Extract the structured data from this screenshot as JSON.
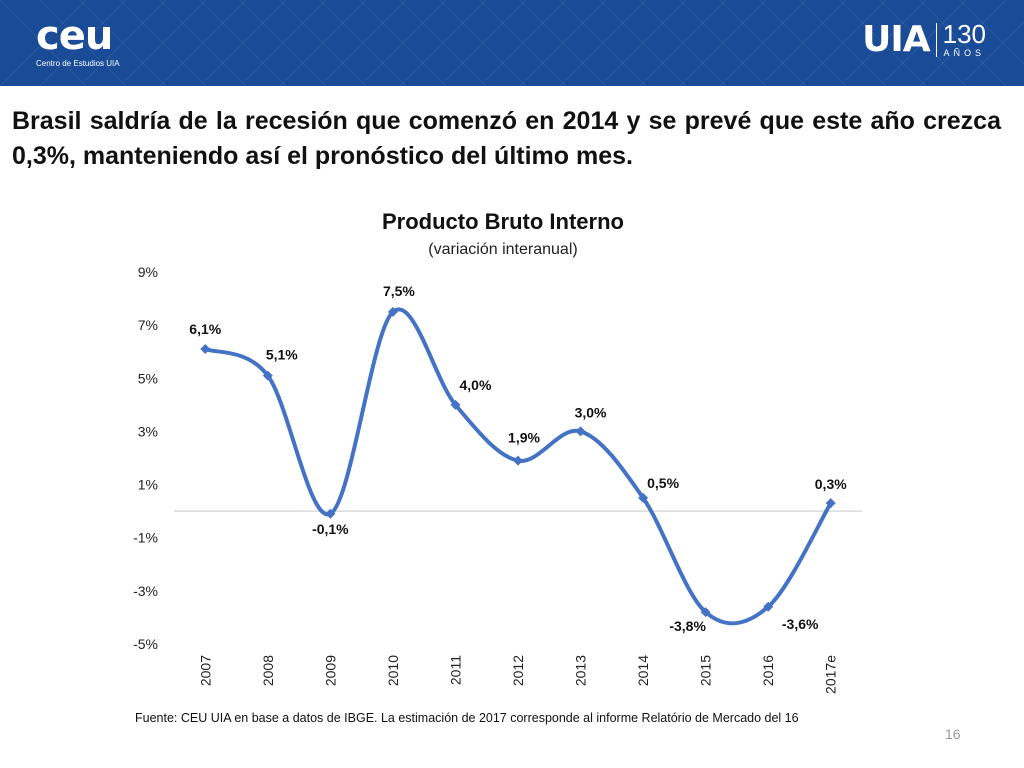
{
  "header": {
    "brand": "ceu",
    "brand_subtitle": "Centro de Estudios UIA",
    "partner_brand": "UIA",
    "anniversary_number": "130",
    "anniversary_label": "AÑOS",
    "colors": {
      "background": "#1a4b97",
      "text": "#ffffff"
    }
  },
  "headline": "Brasil saldría de la recesión que comenzó en 2014 y se prevé que este año crezca 0,3%, manteniendo así el pronóstico del último mes.",
  "chart_data": {
    "type": "line",
    "title": "Producto Bruto Interno",
    "subtitle": "(variación interanual)",
    "xlabel": "",
    "ylabel": "",
    "categories": [
      "2007",
      "2008",
      "2009",
      "2010",
      "2011",
      "2012",
      "2013",
      "2014",
      "2015",
      "2016",
      "2017e"
    ],
    "series": [
      {
        "name": "Variación interanual del PBI",
        "values": [
          6.1,
          5.1,
          -0.1,
          7.5,
          4.0,
          1.9,
          3.0,
          0.5,
          -3.8,
          -3.6,
          0.3
        ],
        "data_labels": [
          "6,1%",
          "5,1%",
          "-0,1%",
          "7,5%",
          "4,0%",
          "1,9%",
          "3,0%",
          "0,5%",
          "-3,8%",
          "-3,6%",
          "0,3%"
        ],
        "color": "#4472c4"
      }
    ],
    "ylim": [
      -5,
      9
    ],
    "yticks": [
      9,
      7,
      5,
      3,
      1,
      -1,
      -3,
      -5
    ],
    "ytick_labels": [
      "9%",
      "7%",
      "5%",
      "3%",
      "1%",
      "-1%",
      "-3%",
      "-5%"
    ],
    "zero_line": true,
    "grid": false,
    "legend": "none",
    "smooth": true
  },
  "source_note": "Fuente: CEU UIA en base a datos de IBGE. La estimación de 2017 corresponde al informe Relatório de Mercado del 16",
  "page_number": "16"
}
